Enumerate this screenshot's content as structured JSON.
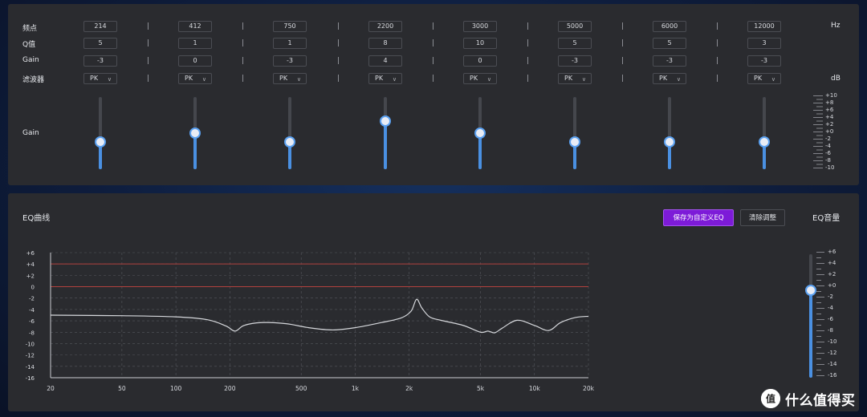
{
  "top": {
    "row_labels": {
      "freq": "频点",
      "q": "Q值",
      "gain": "Gain",
      "filter": "滤波器"
    },
    "slider_label": "Gain",
    "unit_hz": "Hz",
    "unit_db": "dB",
    "bands": [
      {
        "freq": "214",
        "q": "5",
        "gain": "-3",
        "filter": "PK",
        "gain_level": 0.35
      },
      {
        "freq": "412",
        "q": "1",
        "gain": "0",
        "filter": "PK",
        "gain_level": 0.5
      },
      {
        "freq": "750",
        "q": "1",
        "gain": "-3",
        "filter": "PK",
        "gain_level": 0.35
      },
      {
        "freq": "2200",
        "q": "8",
        "gain": "4",
        "filter": "PK",
        "gain_level": 0.7
      },
      {
        "freq": "3000",
        "q": "10",
        "gain": "0",
        "filter": "PK",
        "gain_level": 0.5
      },
      {
        "freq": "5000",
        "q": "5",
        "gain": "-3",
        "filter": "PK",
        "gain_level": 0.35
      },
      {
        "freq": "6000",
        "q": "5",
        "gain": "-3",
        "filter": "PK",
        "gain_level": 0.35
      },
      {
        "freq": "12000",
        "q": "3",
        "gain": "-3",
        "filter": "PK",
        "gain_level": 0.35
      }
    ],
    "gain_scale": [
      "+10",
      "+8",
      "+6",
      "+4",
      "+2",
      "+0",
      "-2",
      "-4",
      "-6",
      "-8",
      "-10"
    ]
  },
  "bottom": {
    "title": "EQ曲线",
    "save_label": "保存为自定义EQ",
    "clear_label": "清除调整",
    "volume_title": "EQ音量",
    "volume_level": 0.727,
    "volume_scale": [
      "+6",
      "+4",
      "+2",
      "+0",
      "-2",
      "-4",
      "-6",
      "-8",
      "-10",
      "-12",
      "-14",
      "-16"
    ]
  },
  "chart_data": {
    "type": "line",
    "title": "",
    "xlabel": "",
    "ylabel": "",
    "x_scale": "log",
    "xlim": [
      20,
      20000
    ],
    "ylim": [
      -16,
      6
    ],
    "x_ticks": [
      20,
      50,
      100,
      200,
      500,
      1000,
      2000,
      5000,
      10000,
      20000
    ],
    "x_tick_labels": [
      "20",
      "50",
      "100",
      "200",
      "500",
      "1k",
      "2k",
      "5k",
      "10k",
      "20k"
    ],
    "y_ticks": [
      6,
      4,
      2,
      0,
      -2,
      -4,
      -6,
      -8,
      -10,
      -12,
      -14,
      -16
    ],
    "y_tick_labels": [
      "+6",
      "+4",
      "+2",
      "0",
      "-2",
      "-4",
      "-6",
      "-8",
      "-10",
      "-12",
      "-14",
      "-16"
    ],
    "reference_lines": [
      4,
      0
    ],
    "grid": true,
    "series": [
      {
        "x": [
          20,
          50,
          100,
          150,
          190,
          214,
          240,
          300,
          412,
          550,
          750,
          1000,
          1400,
          1800,
          2050,
          2200,
          2350,
          2600,
          3000,
          4000,
          5000,
          5500,
          6000,
          6600,
          8000,
          10000,
          12000,
          14000,
          17000,
          20000
        ],
        "values": [
          -5.0,
          -5.1,
          -5.3,
          -5.8,
          -6.9,
          -7.8,
          -6.8,
          -6.3,
          -6.5,
          -7.2,
          -7.6,
          -7.2,
          -6.3,
          -5.5,
          -4.3,
          -2.2,
          -3.7,
          -5.3,
          -5.9,
          -6.8,
          -8.0,
          -7.8,
          -8.1,
          -7.3,
          -5.9,
          -6.8,
          -7.7,
          -6.3,
          -5.4,
          -5.2
        ]
      }
    ]
  },
  "watermark": {
    "text": "什么值得买",
    "logo_char": "值"
  }
}
